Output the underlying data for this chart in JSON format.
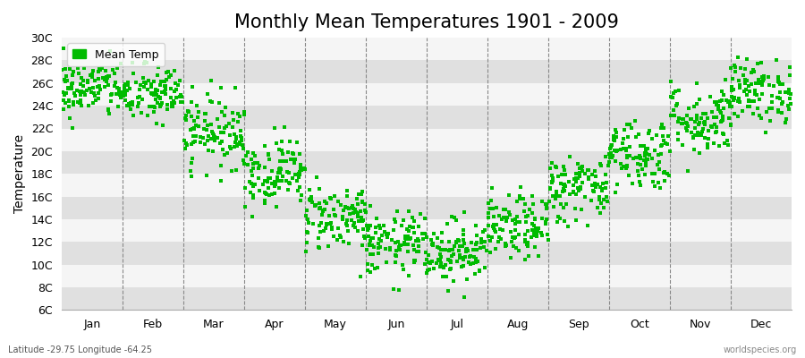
{
  "title": "Monthly Mean Temperatures 1901 - 2009",
  "ylabel": "Temperature",
  "xlabel_bottom_left": "Latitude -29.75 Longitude -64.25",
  "xlabel_bottom_right": "worldspecies.org",
  "legend_label": "Mean Temp",
  "marker_color": "#00bb00",
  "marker_size": 3.5,
  "background_color": "#ffffff",
  "plot_bg_color": "#ebebeb",
  "stripe_light_color": "#f5f5f5",
  "stripe_dark_color": "#e0e0e0",
  "ylim": [
    6,
    30
  ],
  "yticks": [
    6,
    8,
    10,
    12,
    14,
    16,
    18,
    20,
    22,
    24,
    26,
    28,
    30
  ],
  "ytick_labels": [
    "6C",
    "8C",
    "10C",
    "12C",
    "14C",
    "16C",
    "18C",
    "20C",
    "22C",
    "24C",
    "26C",
    "28C",
    "30C"
  ],
  "months": [
    "Jan",
    "Feb",
    "Mar",
    "Apr",
    "May",
    "Jun",
    "Jul",
    "Aug",
    "Sep",
    "Oct",
    "Nov",
    "Dec"
  ],
  "month_means": [
    25.5,
    25.0,
    21.8,
    18.2,
    14.2,
    11.8,
    11.2,
    13.2,
    16.8,
    19.8,
    22.8,
    25.3
  ],
  "month_stds": [
    1.3,
    1.3,
    1.6,
    1.5,
    1.5,
    1.4,
    1.4,
    1.4,
    1.5,
    1.6,
    1.6,
    1.4
  ],
  "num_years": 109,
  "seed": 42,
  "title_fontsize": 15,
  "axis_fontsize": 10,
  "tick_fontsize": 9
}
